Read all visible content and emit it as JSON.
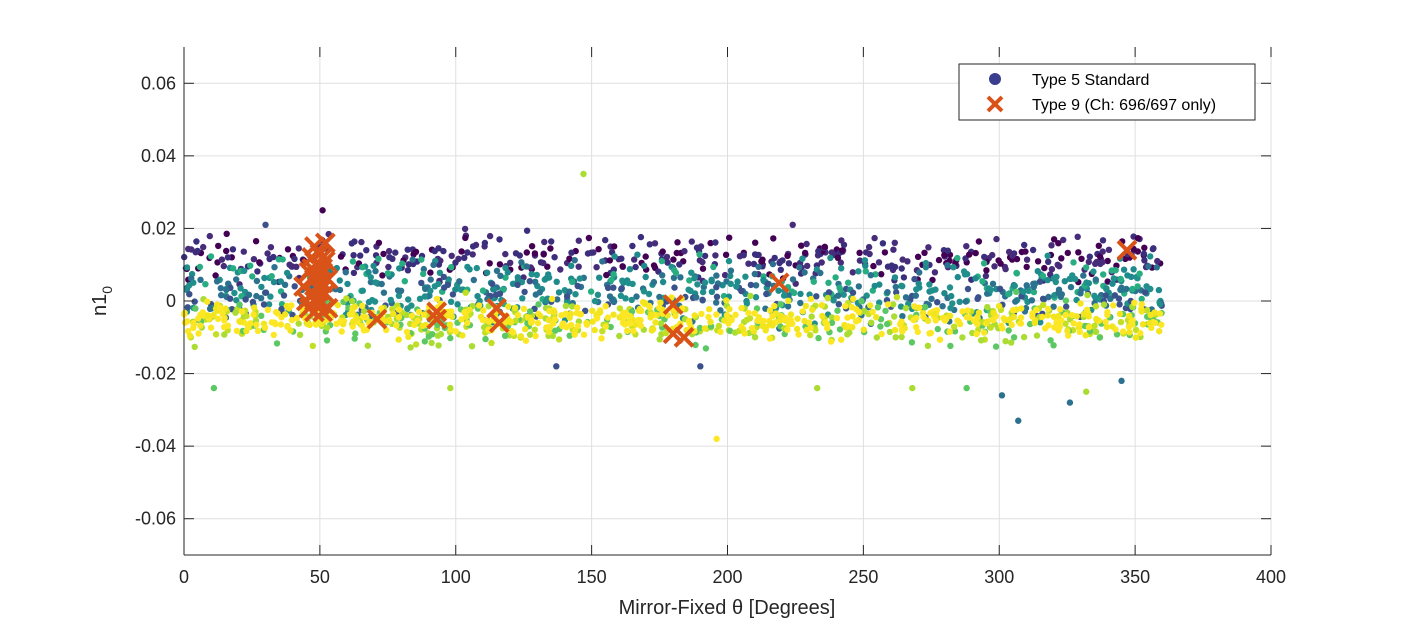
{
  "chart_data": {
    "type": "scatter",
    "xlabel": "Mirror-Fixed θ [Degrees]",
    "ylabel": "n1",
    "ylabel_subscript": "0",
    "xlim": [
      0,
      400
    ],
    "ylim": [
      -0.07,
      0.07
    ],
    "xticks": [
      0,
      50,
      100,
      150,
      200,
      250,
      300,
      350,
      400
    ],
    "xtick_labels": [
      "0",
      "50",
      "100",
      "150",
      "200",
      "250",
      "300",
      "350",
      "400"
    ],
    "yticks": [
      -0.06,
      -0.04,
      -0.02,
      0,
      0.02,
      0.04,
      0.06
    ],
    "ytick_labels": [
      "-0.06",
      "-0.04",
      "-0.02",
      "0",
      "0.02",
      "0.04",
      "0.06"
    ],
    "grid": true,
    "legend_position": "top-right",
    "series": [
      {
        "name": "Type 5 Standard",
        "marker": "dot",
        "legend_color": "#3b3d8f",
        "colormap": [
          "#440154",
          "#472c7a",
          "#3b518b",
          "#2c718e",
          "#21908d",
          "#27ad81",
          "#5cc863",
          "#aadc32",
          "#fde725"
        ],
        "bands": [
          {
            "x_range": [
              0,
              360
            ],
            "y_center": 0.012,
            "y_spread": 0.005,
            "colors": [
              "#440154",
              "#472c7a",
              "#3b2e7d"
            ],
            "count": 420
          },
          {
            "x_range": [
              0,
              360
            ],
            "y_center": 0.005,
            "y_spread": 0.005,
            "colors": [
              "#21908d",
              "#1f8a8c",
              "#27ad81",
              "#2c718e"
            ],
            "count": 420
          },
          {
            "x_range": [
              0,
              360
            ],
            "y_center": 0.0,
            "y_spread": 0.005,
            "colors": [
              "#3b518b",
              "#2c718e",
              "#21908d"
            ],
            "count": 300
          },
          {
            "x_range": [
              0,
              360
            ],
            "y_center": -0.006,
            "y_spread": 0.005,
            "colors": [
              "#aadc32",
              "#5cc863",
              "#c2df23"
            ],
            "count": 420
          },
          {
            "x_range": [
              0,
              360
            ],
            "y_center": -0.005,
            "y_spread": 0.004,
            "colors": [
              "#fde725",
              "#f2e51d",
              "#fde725"
            ],
            "count": 520
          }
        ],
        "outliers": [
          {
            "x": 147,
            "y": 0.035,
            "color": "#aadc32"
          },
          {
            "x": 196,
            "y": -0.038,
            "color": "#fde725"
          },
          {
            "x": 307,
            "y": -0.033,
            "color": "#2c718e"
          },
          {
            "x": 301,
            "y": -0.026,
            "color": "#2c718e"
          },
          {
            "x": 326,
            "y": -0.028,
            "color": "#2c718e"
          },
          {
            "x": 51,
            "y": 0.025,
            "color": "#440154"
          },
          {
            "x": 30,
            "y": 0.021,
            "color": "#3b518b"
          },
          {
            "x": 11,
            "y": -0.024,
            "color": "#5cc863"
          },
          {
            "x": 98,
            "y": -0.024,
            "color": "#aadc32"
          },
          {
            "x": 233,
            "y": -0.024,
            "color": "#aadc32"
          },
          {
            "x": 268,
            "y": -0.024,
            "color": "#aadc32"
          },
          {
            "x": 288,
            "y": -0.024,
            "color": "#5cc863"
          },
          {
            "x": 345,
            "y": -0.022,
            "color": "#2c718e"
          },
          {
            "x": 332,
            "y": -0.025,
            "color": "#aadc32"
          },
          {
            "x": 190,
            "y": -0.018,
            "color": "#3b518b"
          },
          {
            "x": 137,
            "y": -0.018,
            "color": "#3b518b"
          },
          {
            "x": 224,
            "y": 0.021,
            "color": "#472c7a"
          }
        ]
      },
      {
        "name": "Type 9 (Ch: 696/697 only)",
        "marker": "x",
        "color": "#d95319",
        "points": [
          {
            "x": 44,
            "y": 0.004
          },
          {
            "x": 45,
            "y": 0.0
          },
          {
            "x": 46,
            "y": 0.008
          },
          {
            "x": 46,
            "y": -0.002
          },
          {
            "x": 47,
            "y": 0.012
          },
          {
            "x": 47,
            "y": 0.002
          },
          {
            "x": 48,
            "y": 0.015
          },
          {
            "x": 48,
            "y": 0.006
          },
          {
            "x": 48,
            "y": -0.003
          },
          {
            "x": 49,
            "y": 0.01
          },
          {
            "x": 49,
            "y": 0.001
          },
          {
            "x": 49,
            "y": 0.004
          },
          {
            "x": 50,
            "y": 0.013
          },
          {
            "x": 50,
            "y": 0.007
          },
          {
            "x": 50,
            "y": -0.001
          },
          {
            "x": 50,
            "y": 0.003
          },
          {
            "x": 51,
            "y": 0.009
          },
          {
            "x": 51,
            "y": 0.005
          },
          {
            "x": 51,
            "y": -0.003
          },
          {
            "x": 52,
            "y": 0.016
          },
          {
            "x": 52,
            "y": 0.011
          },
          {
            "x": 52,
            "y": 0.002
          },
          {
            "x": 53,
            "y": 0.006
          },
          {
            "x": 53,
            "y": -0.002
          },
          {
            "x": 47,
            "y": 0.009
          },
          {
            "x": 49,
            "y": 0.007
          },
          {
            "x": 51,
            "y": 0.012
          },
          {
            "x": 48,
            "y": 0.0
          },
          {
            "x": 71,
            "y": -0.005
          },
          {
            "x": 93,
            "y": -0.003
          },
          {
            "x": 93,
            "y": -0.005
          },
          {
            "x": 115,
            "y": -0.002
          },
          {
            "x": 116,
            "y": -0.006
          },
          {
            "x": 180,
            "y": -0.001
          },
          {
            "x": 180,
            "y": -0.009
          },
          {
            "x": 184,
            "y": -0.01
          },
          {
            "x": 219,
            "y": 0.005
          },
          {
            "x": 347,
            "y": 0.014
          }
        ]
      }
    ]
  }
}
